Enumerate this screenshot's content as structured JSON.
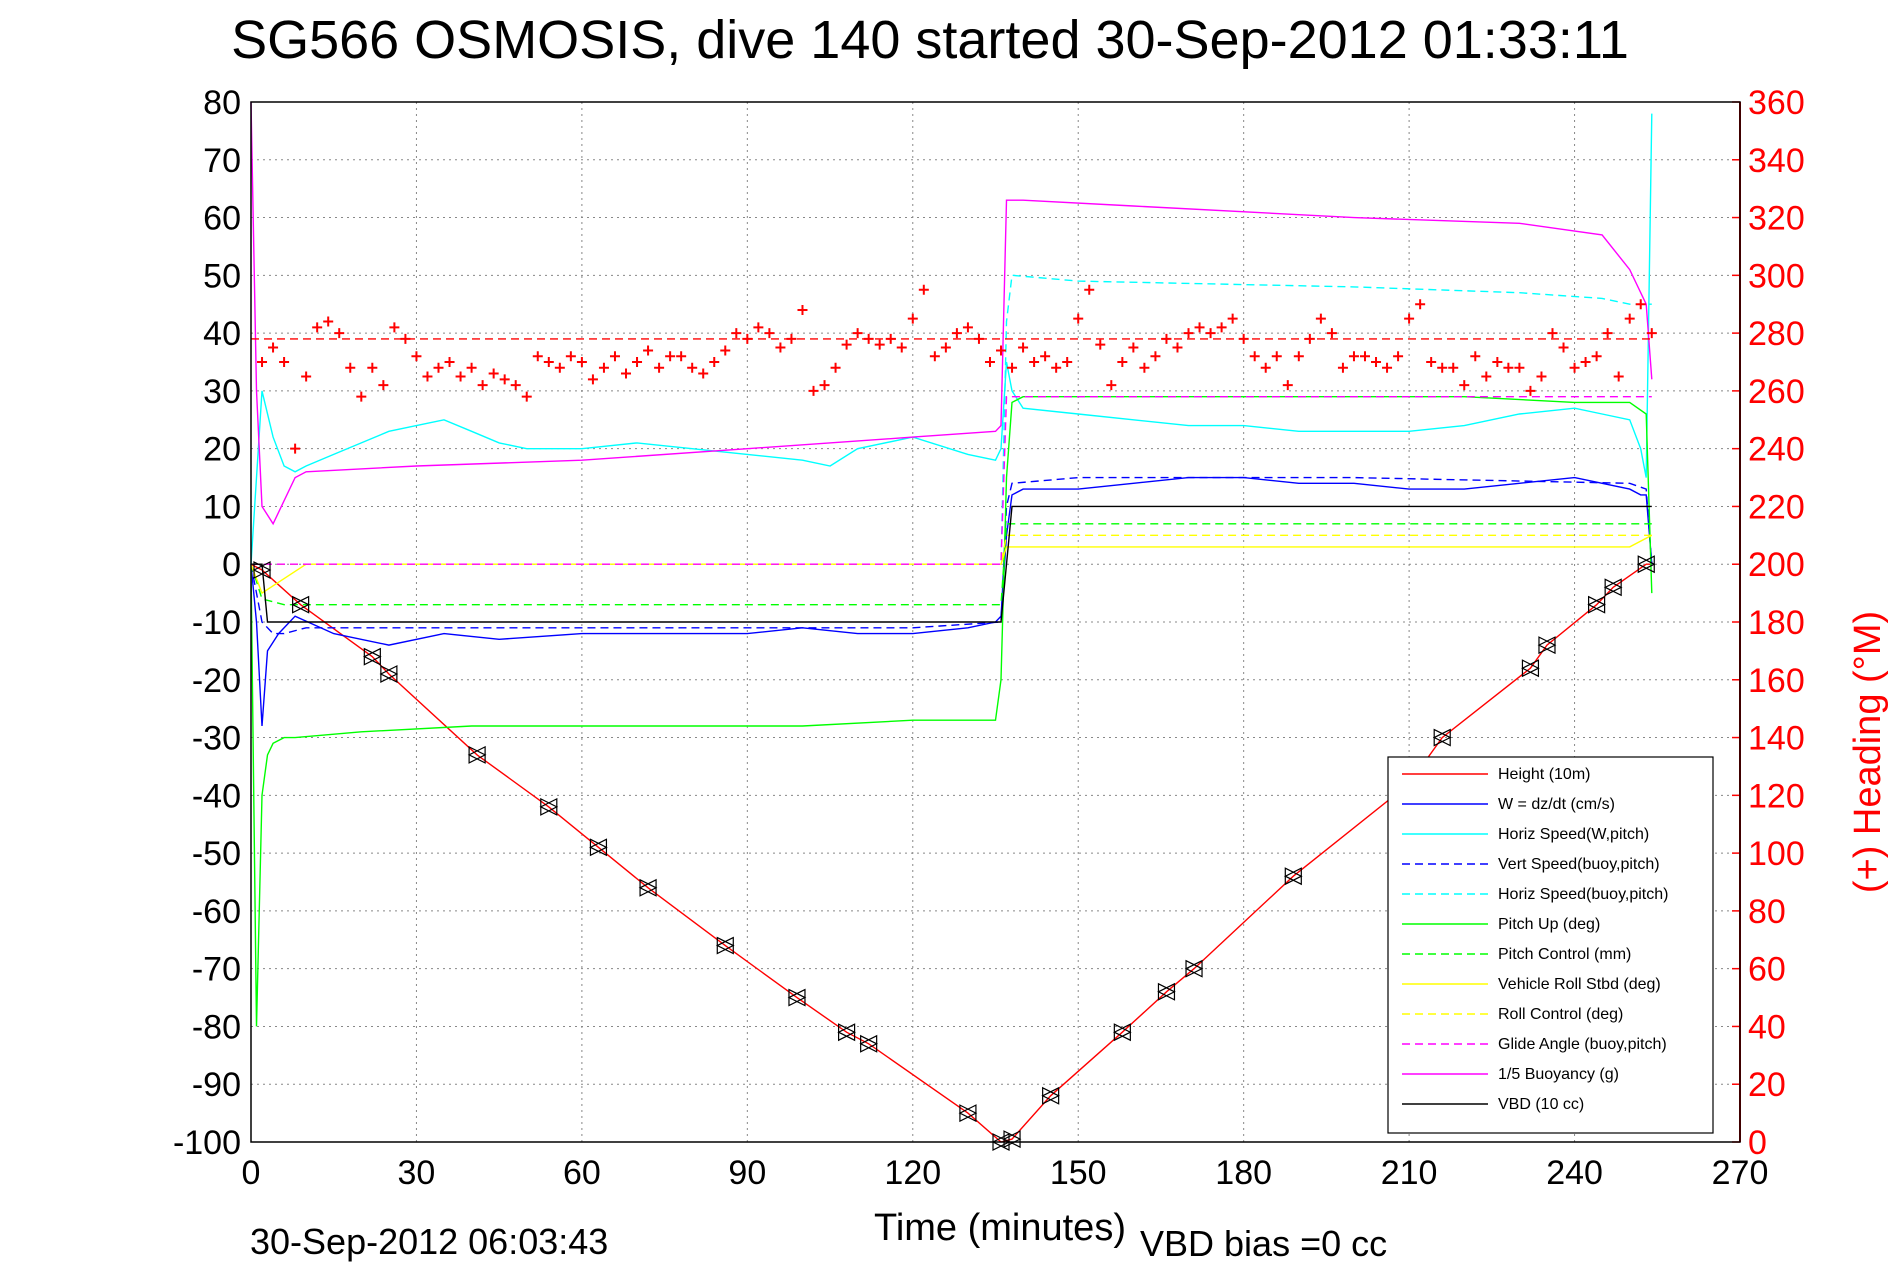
{
  "chart_data": {
    "type": "line",
    "title": "SG566 OSMOSIS, dive 140 started 30-Sep-2012 01:33:11",
    "xlabel": "Time (minutes)",
    "ylabel": "",
    "y2label": "(+) Heading (°M)",
    "footer_left": "30-Sep-2012 06:03:43",
    "footer_right": "VBD bias =0 cc",
    "xlim": [
      0,
      270
    ],
    "ylim": [
      -100,
      80
    ],
    "y2lim": [
      0,
      360
    ],
    "grid": true,
    "legend_position": "bottom-right",
    "xticks": [
      "0",
      "30",
      "60",
      "90",
      "120",
      "150",
      "180",
      "210",
      "240",
      "270"
    ],
    "yticks": [
      "80",
      "70",
      "60",
      "50",
      "40",
      "30",
      "20",
      "10",
      "0",
      "-10",
      "-20",
      "-30",
      "-40",
      "-50",
      "-60",
      "-70",
      "-80",
      "-90",
      "-100"
    ],
    "y2ticks": [
      "360",
      "340",
      "320",
      "300",
      "280",
      "260",
      "240",
      "220",
      "200",
      "180",
      "160",
      "140",
      "120",
      "100",
      "80",
      "60",
      "40",
      "20",
      "0"
    ],
    "colors": {
      "height": "#ff0000",
      "w": "#0000ff",
      "horiz_w": "#00ffff",
      "vert_buoy": "#0000ff",
      "horiz_buoy": "#00ffff",
      "pitch": "#00ff00",
      "pitch_ctrl": "#00ff00",
      "roll": "#ffff00",
      "roll_ctrl": "#ffff00",
      "glide": "#ff00ff",
      "buoyancy": "#ff00ff",
      "vbd": "#000000",
      "heading": "#ff0000"
    },
    "series": [
      {
        "name": "Height (10m)",
        "style": "solid",
        "color": "#ff0000",
        "x": [
          0,
          2,
          9,
          22,
          25,
          41,
          54,
          63,
          72,
          86,
          99,
          108,
          112,
          130,
          136,
          138,
          145,
          158,
          166,
          171,
          189,
          210,
          216,
          232,
          235,
          244,
          247,
          253,
          254
        ],
        "y": [
          0,
          -1,
          -7,
          -16,
          -19,
          -33,
          -42,
          -49,
          -56,
          -66,
          -75,
          -81,
          -83,
          -95,
          -100,
          -99.5,
          -92,
          -81,
          -74,
          -70,
          -54,
          -38,
          -30,
          -18,
          -14,
          -7,
          -4,
          0,
          0
        ]
      },
      {
        "name": "W = dz/dt (cm/s)",
        "style": "solid",
        "color": "#0000ff",
        "x": [
          0,
          1,
          2,
          3,
          5,
          8,
          15,
          25,
          35,
          45,
          60,
          75,
          90,
          100,
          110,
          120,
          130,
          135,
          136,
          137,
          138,
          140,
          150,
          160,
          170,
          180,
          190,
          200,
          210,
          220,
          230,
          240,
          245,
          250,
          252,
          253,
          254
        ],
        "y": [
          0,
          -10,
          -28,
          -15,
          -12,
          -9,
          -12,
          -14,
          -12,
          -13,
          -12,
          -12,
          -12,
          -11,
          -12,
          -12,
          -11,
          -10,
          -9,
          5,
          12,
          13,
          13,
          14,
          15,
          15,
          14,
          14,
          13,
          13,
          14,
          15,
          14,
          13,
          12,
          12,
          0
        ]
      },
      {
        "name": "Horiz Speed(W,pitch)",
        "style": "solid",
        "color": "#00ffff",
        "x": [
          0,
          2,
          4,
          6,
          8,
          10,
          15,
          20,
          25,
          30,
          35,
          40,
          45,
          50,
          55,
          60,
          70,
          80,
          90,
          100,
          105,
          110,
          120,
          130,
          135,
          136,
          137,
          138,
          140,
          150,
          160,
          170,
          180,
          190,
          200,
          210,
          220,
          230,
          240,
          245,
          250,
          252,
          253,
          254
        ],
        "y": [
          0,
          30,
          22,
          17,
          16,
          17,
          19,
          21,
          23,
          24,
          25,
          23,
          21,
          20,
          20,
          20,
          21,
          20,
          19,
          18,
          17,
          20,
          22,
          19,
          18,
          20,
          35,
          30,
          27,
          26,
          25,
          24,
          24,
          23,
          23,
          23,
          24,
          26,
          27,
          26,
          25,
          20,
          15,
          78
        ]
      },
      {
        "name": "Vert Speed(buoy,pitch)",
        "style": "dashed",
        "color": "#0000ff",
        "x": [
          0,
          2,
          4,
          6,
          10,
          40,
          80,
          120,
          136,
          137,
          138,
          150,
          200,
          250,
          253,
          254
        ],
        "y": [
          0,
          -10,
          -12,
          -12,
          -11,
          -11,
          -11,
          -11,
          -10,
          10,
          14,
          15,
          15,
          14,
          13,
          0
        ]
      },
      {
        "name": "Horiz Speed(buoy,pitch)",
        "style": "dashed",
        "color": "#00ffff",
        "x": [
          0,
          2,
          6,
          10,
          40,
          80,
          120,
          135,
          136,
          137,
          138,
          150,
          200,
          230,
          245,
          250,
          254
        ],
        "y": [
          0,
          0,
          0,
          0,
          0,
          0,
          0,
          0,
          0,
          42,
          50,
          49,
          48,
          47,
          46,
          45,
          45
        ]
      },
      {
        "name": "Pitch Up (deg)",
        "style": "solid",
        "color": "#00ff00",
        "x": [
          0,
          1,
          2,
          3,
          4,
          6,
          8,
          20,
          40,
          60,
          80,
          100,
          120,
          130,
          135,
          136,
          137,
          138,
          140,
          160,
          180,
          200,
          220,
          240,
          250,
          253,
          254
        ],
        "y": [
          0,
          -80,
          -40,
          -33,
          -31,
          -30,
          -30,
          -29,
          -28,
          -28,
          -28,
          -28,
          -27,
          -27,
          -27,
          -20,
          15,
          28,
          29,
          29,
          29,
          29,
          29,
          28,
          28,
          26,
          -5
        ]
      },
      {
        "name": "Pitch Control (mm)",
        "style": "dashed",
        "color": "#00ff00",
        "x": [
          0,
          2,
          6,
          136,
          137,
          254
        ],
        "y": [
          0,
          -6,
          -7,
          -7,
          7,
          7
        ]
      },
      {
        "name": "Vehicle Roll Stbd (deg)",
        "style": "solid",
        "color": "#ffff00",
        "x": [
          0,
          2,
          10,
          20,
          40,
          60,
          80,
          100,
          120,
          135,
          136,
          137,
          150,
          170,
          190,
          210,
          230,
          250,
          254
        ],
        "y": [
          0,
          -5,
          0,
          0,
          0,
          0,
          0,
          0,
          0,
          0,
          0,
          3,
          3,
          3,
          3,
          3,
          3,
          3,
          5
        ]
      },
      {
        "name": "Roll Control (deg)",
        "style": "dashed",
        "color": "#ffff00",
        "x": [
          0,
          2,
          10,
          40,
          80,
          120,
          135,
          136,
          137,
          200,
          254
        ],
        "y": [
          0,
          0,
          0,
          0,
          0,
          0,
          0,
          0,
          5,
          5,
          5
        ]
      },
      {
        "name": "Glide Angle (buoy,pitch)",
        "style": "dashed",
        "color": "#ff00ff",
        "x": [
          0,
          2,
          6,
          136,
          137,
          254
        ],
        "y": [
          0,
          0,
          0,
          0,
          29,
          29
        ]
      },
      {
        "name": "1/5 Buoyancy (g)",
        "style": "solid",
        "color": "#ff00ff",
        "x": [
          0,
          1,
          2,
          4,
          8,
          10,
          30,
          60,
          90,
          120,
          135,
          136,
          137,
          140,
          160,
          200,
          230,
          245,
          250,
          253,
          254
        ],
        "y": [
          80,
          30,
          10,
          7,
          15,
          16,
          17,
          18,
          20,
          22,
          23,
          24,
          63,
          63,
          62,
          60,
          59,
          57,
          51,
          45,
          32
        ]
      },
      {
        "name": "VBD (10 cc)",
        "style": "solid",
        "color": "#000000",
        "x": [
          0,
          2,
          3,
          136,
          137,
          138,
          254
        ],
        "y": [
          0,
          0,
          -10,
          -10,
          0,
          10,
          10
        ]
      }
    ],
    "heading": {
      "name": "Heading",
      "color": "#ff0000",
      "marker": "+",
      "x": [
        2,
        4,
        6,
        8,
        10,
        12,
        14,
        16,
        18,
        20,
        22,
        24,
        26,
        28,
        30,
        32,
        34,
        36,
        38,
        40,
        42,
        44,
        46,
        48,
        50,
        52,
        54,
        56,
        58,
        60,
        62,
        64,
        66,
        68,
        70,
        72,
        74,
        76,
        78,
        80,
        82,
        84,
        86,
        88,
        90,
        92,
        94,
        96,
        98,
        100,
        102,
        104,
        106,
        108,
        110,
        112,
        114,
        116,
        118,
        120,
        122,
        124,
        126,
        128,
        130,
        132,
        134,
        136,
        138,
        140,
        142,
        144,
        146,
        148,
        150,
        152,
        154,
        156,
        158,
        160,
        162,
        164,
        166,
        168,
        170,
        172,
        174,
        176,
        178,
        180,
        182,
        184,
        186,
        188,
        190,
        192,
        194,
        196,
        198,
        200,
        202,
        204,
        206,
        208,
        210,
        212,
        214,
        216,
        218,
        220,
        222,
        224,
        226,
        228,
        230,
        232,
        234,
        236,
        238,
        240,
        242,
        244,
        246,
        248,
        250,
        252,
        254
      ],
      "y": [
        270,
        275,
        270,
        240,
        265,
        282,
        284,
        280,
        268,
        258,
        268,
        262,
        282,
        278,
        272,
        265,
        268,
        270,
        265,
        268,
        262,
        266,
        264,
        262,
        258,
        272,
        270,
        268,
        272,
        270,
        264,
        268,
        272,
        266,
        270,
        274,
        268,
        272,
        272,
        268,
        266,
        270,
        274,
        280,
        278,
        282,
        280,
        275,
        278,
        288,
        260,
        262,
        268,
        276,
        280,
        278,
        276,
        278,
        275,
        285,
        295,
        272,
        275,
        280,
        282,
        278,
        270,
        274,
        268,
        275,
        270,
        272,
        268,
        270,
        285,
        295,
        276,
        262,
        270,
        275,
        268,
        272,
        278,
        275,
        280,
        282,
        280,
        282,
        285,
        278,
        272,
        268,
        272,
        262,
        272,
        278,
        285,
        280,
        268,
        272,
        272,
        270,
        268,
        272,
        285,
        290,
        270,
        268,
        268,
        262,
        272,
        265,
        270,
        268,
        268,
        260,
        265,
        280,
        275,
        268,
        270,
        272,
        280,
        265,
        285,
        290,
        280
      ],
      "reference_line": 278
    }
  },
  "legend": {
    "entries": [
      {
        "label": "Height (10m)",
        "color": "#ff0000",
        "style": "solid"
      },
      {
        "label": "W = dz/dt (cm/s)",
        "color": "#0000ff",
        "style": "solid"
      },
      {
        "label": "Horiz Speed(W,pitch)",
        "color": "#00ffff",
        "style": "solid"
      },
      {
        "label": "Vert Speed(buoy,pitch)",
        "color": "#0000ff",
        "style": "dashed"
      },
      {
        "label": "Horiz Speed(buoy,pitch)",
        "color": "#00ffff",
        "style": "dashed"
      },
      {
        "label": "Pitch Up (deg)",
        "color": "#00ff00",
        "style": "solid"
      },
      {
        "label": "Pitch Control (mm)",
        "color": "#00ff00",
        "style": "dashed"
      },
      {
        "label": "Vehicle Roll Stbd (deg)",
        "color": "#ffff00",
        "style": "solid"
      },
      {
        "label": "Roll Control (deg)",
        "color": "#ffff00",
        "style": "dashed"
      },
      {
        "label": "Glide Angle (buoy,pitch)",
        "color": "#ff00ff",
        "style": "dashed"
      },
      {
        "label": "1/5 Buoyancy (g)",
        "color": "#ff00ff",
        "style": "solid"
      },
      {
        "label": "VBD (10 cc)",
        "color": "#000000",
        "style": "solid"
      }
    ]
  }
}
